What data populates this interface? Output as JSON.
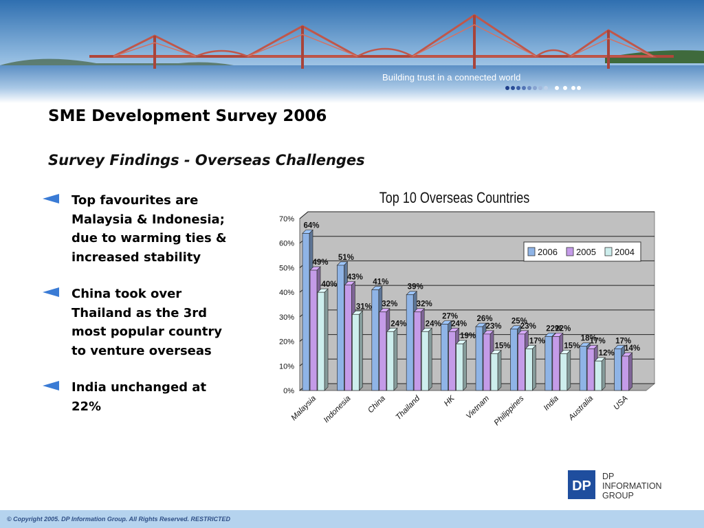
{
  "banner": {
    "tagline": "Building trust in a connected world"
  },
  "slide": {
    "title": "SME Development Survey 2006",
    "subtitle": "Survey Findings  -  Overseas Challenges"
  },
  "bullets": [
    {
      "text": "Top favourites are\nMalaysia & Indonesia;\ndue to warming ties &\nincreased stability"
    },
    {
      "text": "China took over\nThailand as the 3rd\nmost popular country\nto venture overseas"
    },
    {
      "text": "India unchanged at\n22%"
    }
  ],
  "chart_data": {
    "type": "bar",
    "title": "Top 10 Overseas Countries",
    "categories": [
      "Malaysia",
      "Indonesia",
      "China",
      "Thailand",
      "HK",
      "Vietnam",
      "Philippines",
      "India",
      "Australia",
      "USA"
    ],
    "series": [
      {
        "name": "2006",
        "color": "#8fb4e6",
        "values": [
          64,
          51,
          41,
          39,
          27,
          26,
          25,
          22,
          18,
          17
        ]
      },
      {
        "name": "2005",
        "color": "#c49be8",
        "values": [
          49,
          43,
          32,
          32,
          24,
          23,
          23,
          22,
          17,
          14
        ]
      },
      {
        "name": "2004",
        "color": "#cdeeed",
        "values": [
          40,
          31,
          24,
          24,
          19,
          15,
          17,
          15,
          12,
          null
        ]
      }
    ],
    "yticks": [
      "0%",
      "10%",
      "20%",
      "30%",
      "40%",
      "50%",
      "60%",
      "70%"
    ],
    "ylim": [
      0,
      70
    ],
    "value_suffix": "%",
    "grid": true,
    "legend_position": "top-right",
    "plot_background": "#c0c0c0"
  },
  "company": {
    "logo_letters": "DP",
    "name": "DP\nINFORMATION\nGROUP"
  },
  "footer": {
    "copyright": "© Copyright 2005. DP Information Group. All Rights Reserved. RESTRICTED"
  },
  "colors": {
    "bullet_arrow": "#3a7bd5",
    "footer_bg": "#b5d3ee",
    "logo_blue": "#1f4e9e"
  }
}
